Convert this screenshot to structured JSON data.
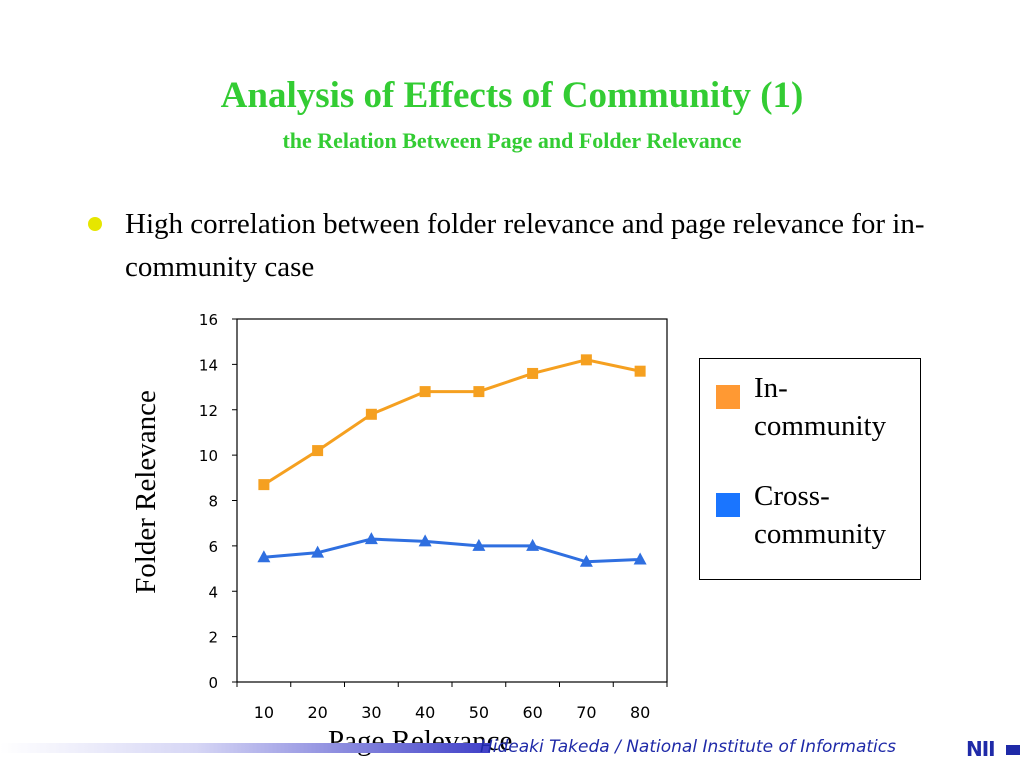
{
  "slide": {
    "title": "Analysis of Effects of Community (1)",
    "subtitle": "the Relation Between Page and Folder Relevance",
    "bullet": "High correlation between folder relevance and page relevance for in-community case",
    "footer": "Hideaki Takeda / National Institute of Informatics",
    "logo": "NII",
    "accent_color": "#33cc33",
    "bullet_color": "#e6e600",
    "footer_color": "#1f2aa8"
  },
  "chart_data": {
    "type": "line",
    "categories": [
      "10",
      "20",
      "30",
      "40",
      "50",
      "60",
      "70",
      "80"
    ],
    "series": [
      {
        "name": "In-community",
        "values": [
          8.7,
          10.2,
          11.8,
          12.8,
          12.8,
          13.6,
          14.2,
          13.7
        ],
        "color": "#f5a020",
        "marker": "square"
      },
      {
        "name": "Cross-community",
        "values": [
          5.5,
          5.7,
          6.3,
          6.2,
          6.0,
          6.0,
          5.3,
          5.4
        ],
        "color": "#2f6fe0",
        "marker": "triangle"
      }
    ],
    "xlabel": "Page Relevance",
    "ylabel": "Folder Relevance",
    "ylim": [
      0,
      16
    ],
    "yticks": [
      "0",
      "2",
      "4",
      "6",
      "8",
      "10",
      "12",
      "14",
      "16"
    ],
    "legend_position": "right",
    "legend": [
      {
        "label_line1": "In-",
        "label_line2": "community",
        "color": "#ff9933"
      },
      {
        "label_line1": "Cross-",
        "label_line2": "community",
        "color": "#1a75ff"
      }
    ],
    "grid": false
  }
}
